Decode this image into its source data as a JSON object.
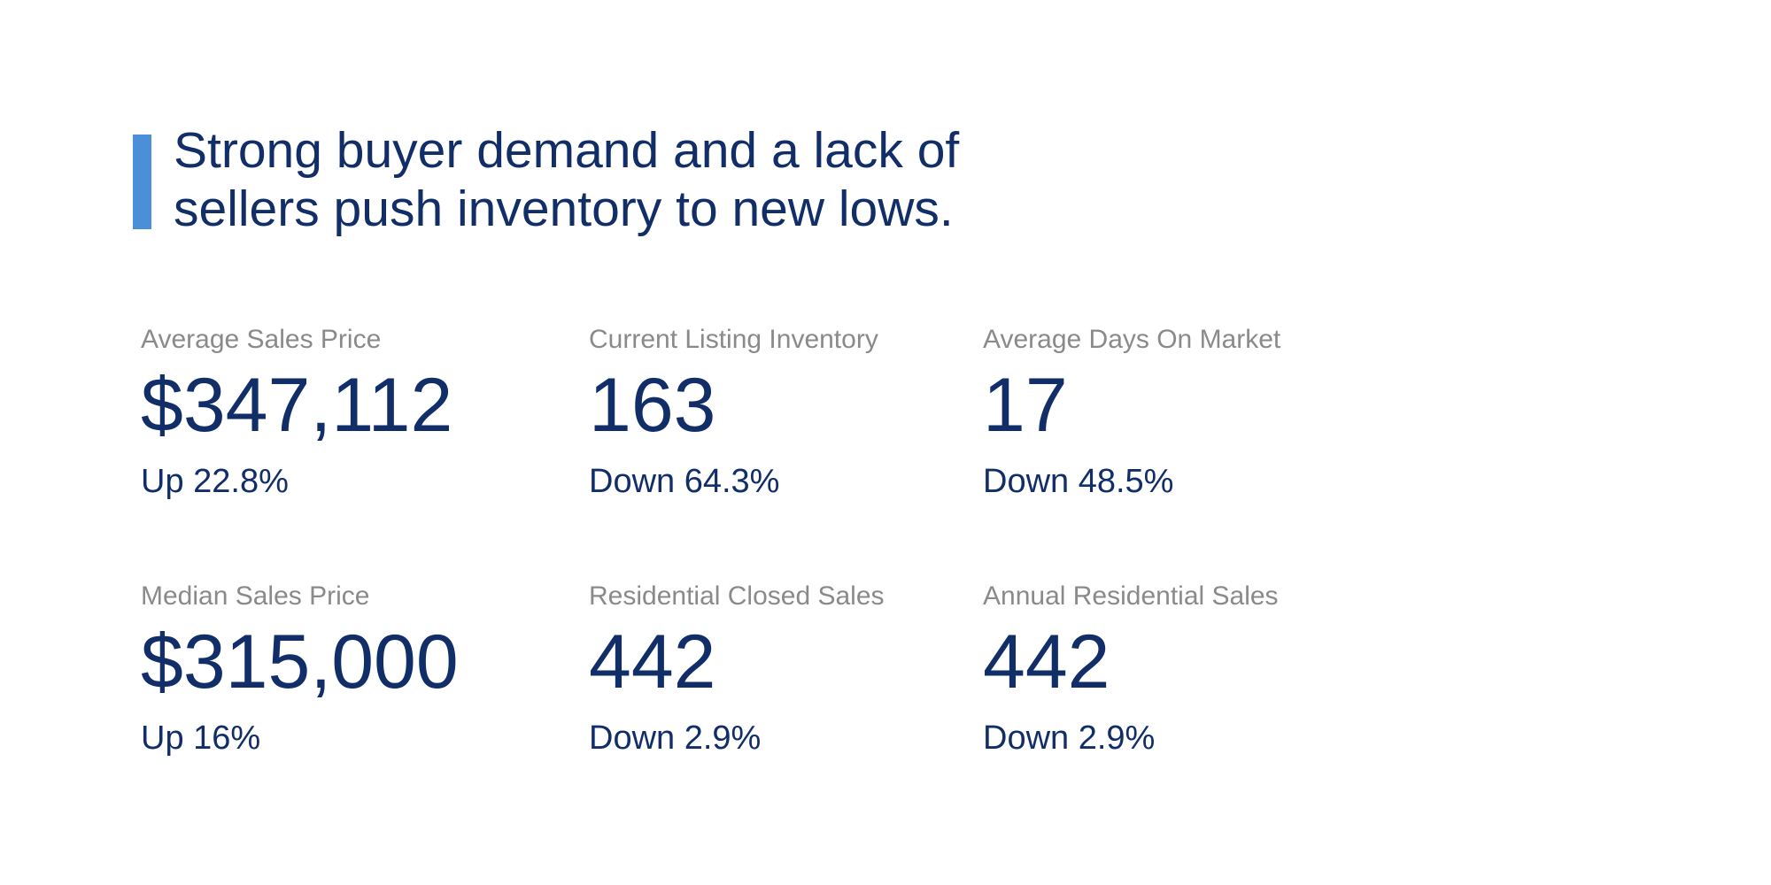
{
  "headline": {
    "line1": "Strong buyer demand and a lack of",
    "line2": "sellers push inventory to new lows."
  },
  "stats": [
    {
      "label": "Average Sales Price",
      "value": "$347,112",
      "change": "Up 22.8%"
    },
    {
      "label": "Current Listing Inventory",
      "value": "163",
      "change": "Down 64.3%"
    },
    {
      "label": "Average Days On Market",
      "value": "17",
      "change": "Down 48.5%"
    },
    {
      "label": "Median Sales Price",
      "value": "$315,000",
      "change": "Up 16%"
    },
    {
      "label": "Residential Closed Sales",
      "value": "442",
      "change": "Down 2.9%"
    },
    {
      "label": "Annual Residential Sales",
      "value": "442",
      "change": "Down 2.9%"
    }
  ],
  "colors": {
    "accent-blue": "#4a8fd7",
    "navy": "#122e68",
    "label-gray": "#8a8a8a",
    "background": "#ffffff"
  }
}
